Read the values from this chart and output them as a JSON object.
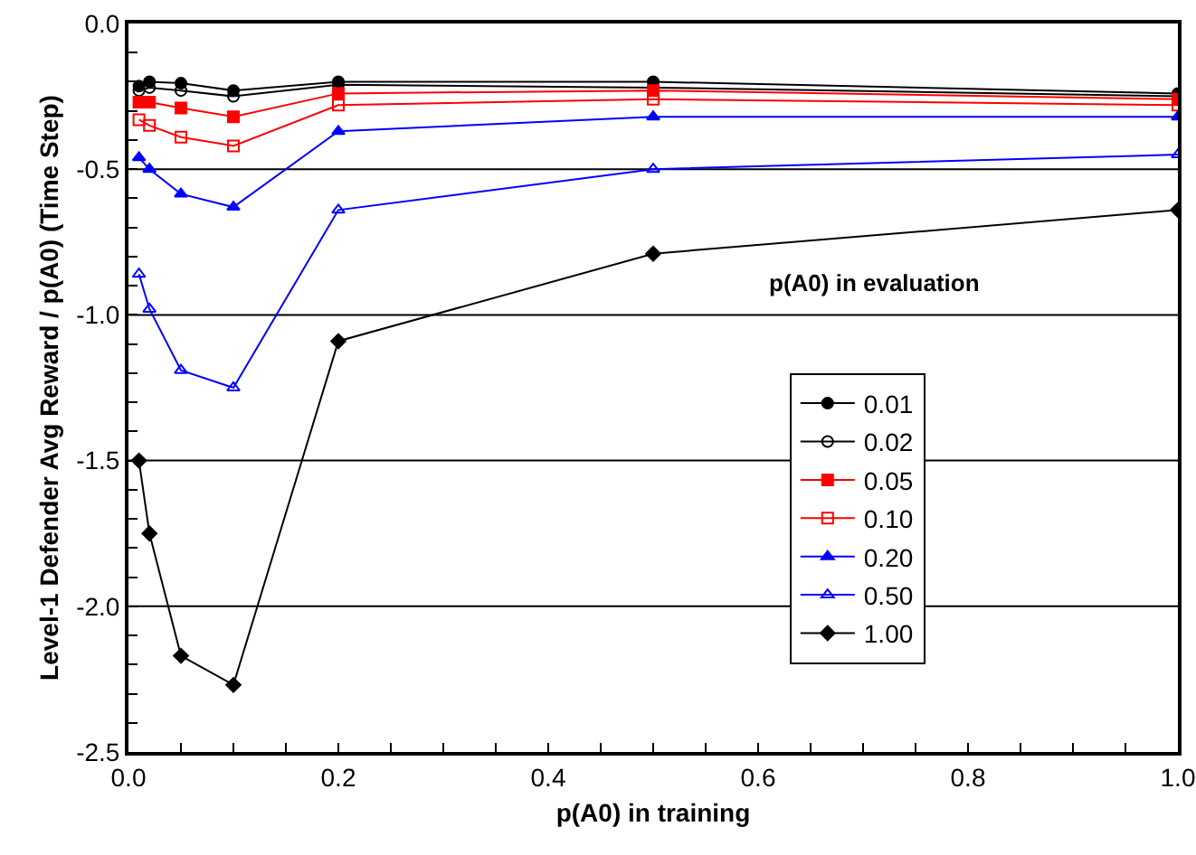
{
  "chart_data": {
    "type": "line",
    "xlabel": "p(A0) in training",
    "ylabel": "Level-1 Defender Avg Reward / p(A0) (Time Step)",
    "legend_title": "p(A0) in evaluation",
    "x": [
      0.01,
      0.02,
      0.05,
      0.1,
      0.2,
      0.5,
      1.0
    ],
    "series": [
      {
        "name": "0.01",
        "color": "#000000",
        "marker": "circle",
        "values": [
          -0.215,
          -0.2,
          -0.205,
          -0.23,
          -0.2,
          -0.2,
          -0.24
        ]
      },
      {
        "name": "0.02",
        "color": "#000000",
        "marker": "circle-open",
        "values": [
          -0.23,
          -0.22,
          -0.23,
          -0.25,
          -0.21,
          -0.22,
          -0.25
        ]
      },
      {
        "name": "0.05",
        "color": "#ff0000",
        "marker": "square",
        "values": [
          -0.27,
          -0.27,
          -0.29,
          -0.32,
          -0.24,
          -0.23,
          -0.26
        ]
      },
      {
        "name": "0.10",
        "color": "#ff0000",
        "marker": "square-open",
        "values": [
          -0.33,
          -0.35,
          -0.39,
          -0.42,
          -0.28,
          -0.26,
          -0.28
        ]
      },
      {
        "name": "0.20",
        "color": "#0000ff",
        "marker": "triangle",
        "values": [
          -0.46,
          -0.5,
          -0.585,
          -0.63,
          -0.37,
          -0.32,
          -0.32
        ]
      },
      {
        "name": "0.50",
        "color": "#0000ff",
        "marker": "triangle-open",
        "values": [
          -0.86,
          -0.98,
          -1.19,
          -1.25,
          -0.64,
          -0.5,
          -0.45
        ]
      },
      {
        "name": "1.00",
        "color": "#000000",
        "marker": "diamond",
        "values": [
          -1.5,
          -1.75,
          -2.17,
          -2.27,
          -1.09,
          -0.79,
          -0.64
        ]
      }
    ],
    "xlim": [
      0,
      1.0
    ],
    "ylim": [
      -2.5,
      0.0
    ],
    "xticks": [
      {
        "value": 0,
        "label": "0.0"
      },
      {
        "value": 0.05,
        "label": null
      },
      {
        "value": 0.1,
        "label": null
      },
      {
        "value": 0.15,
        "label": null
      },
      {
        "value": 0.2,
        "label": "0.2"
      },
      {
        "value": 0.25,
        "label": null
      },
      {
        "value": 0.3,
        "label": null
      },
      {
        "value": 0.35,
        "label": null
      },
      {
        "value": 0.4,
        "label": "0.4"
      },
      {
        "value": 0.45,
        "label": null
      },
      {
        "value": 0.5,
        "label": null
      },
      {
        "value": 0.55,
        "label": null
      },
      {
        "value": 0.6,
        "label": "0.6"
      },
      {
        "value": 0.65,
        "label": null
      },
      {
        "value": 0.7,
        "label": null
      },
      {
        "value": 0.75,
        "label": null
      },
      {
        "value": 0.8,
        "label": "0.8"
      },
      {
        "value": 0.85,
        "label": null
      },
      {
        "value": 0.9,
        "label": null
      },
      {
        "value": 0.95,
        "label": null
      },
      {
        "value": 1.0,
        "label": "1.0"
      }
    ],
    "yticks": [
      {
        "value": -2.5,
        "label": "-2.5"
      },
      {
        "value": -2.4,
        "label": null
      },
      {
        "value": -2.3,
        "label": null
      },
      {
        "value": -2.2,
        "label": null
      },
      {
        "value": -2.1,
        "label": null
      },
      {
        "value": -2.0,
        "label": "-2.0"
      },
      {
        "value": -1.9,
        "label": null
      },
      {
        "value": -1.8,
        "label": null
      },
      {
        "value": -1.7,
        "label": null
      },
      {
        "value": -1.6,
        "label": null
      },
      {
        "value": -1.5,
        "label": "-1.5"
      },
      {
        "value": -1.4,
        "label": null
      },
      {
        "value": -1.3,
        "label": null
      },
      {
        "value": -1.2,
        "label": null
      },
      {
        "value": -1.1,
        "label": null
      },
      {
        "value": -1.0,
        "label": "-1.0"
      },
      {
        "value": -0.9,
        "label": null
      },
      {
        "value": -0.8,
        "label": null
      },
      {
        "value": -0.7,
        "label": null
      },
      {
        "value": -0.6,
        "label": null
      },
      {
        "value": -0.5,
        "label": "-0.5"
      },
      {
        "value": -0.4,
        "label": null
      },
      {
        "value": -0.3,
        "label": null
      },
      {
        "value": -0.2,
        "label": null
      },
      {
        "value": -0.1,
        "label": null
      },
      {
        "value": 0.0,
        "label": "0.0"
      }
    ],
    "grid": "y",
    "legend": "right",
    "line_style": "solid"
  }
}
